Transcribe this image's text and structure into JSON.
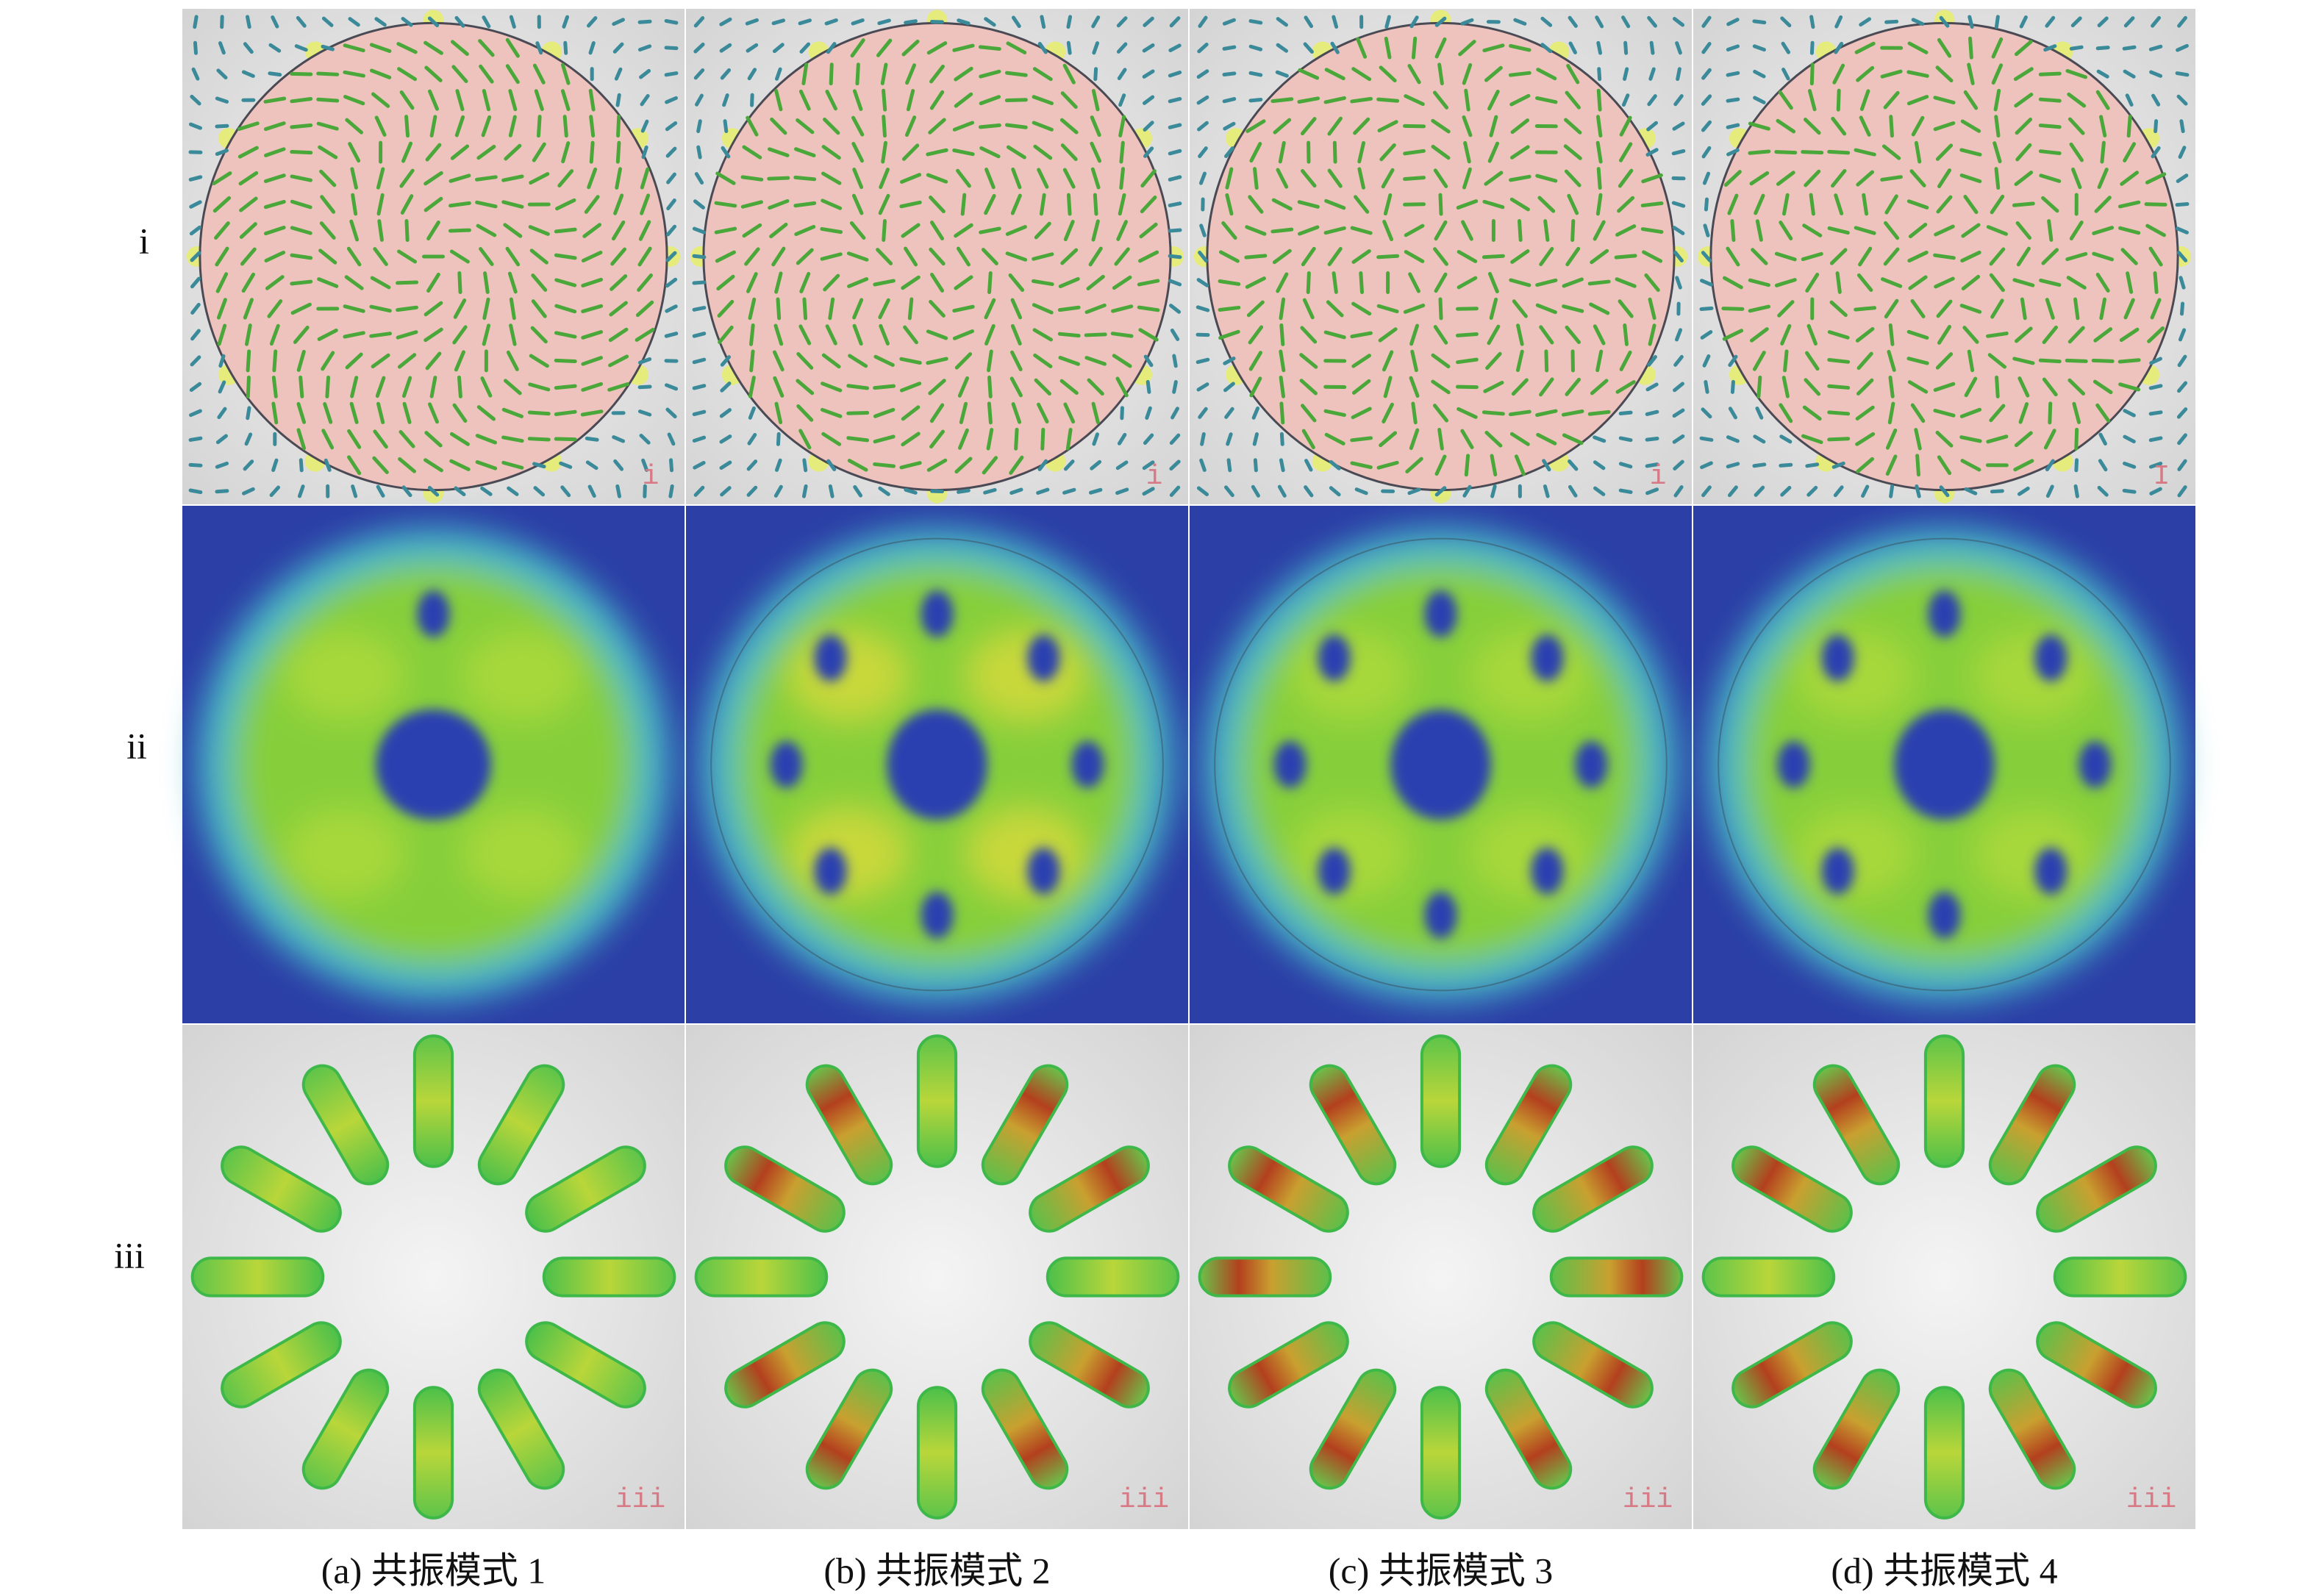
{
  "row_labels": [
    "i",
    "ii",
    "iii"
  ],
  "row_i_labels": [
    "i",
    "i",
    "i",
    "I"
  ],
  "row_iii_labels": [
    "iii",
    "iii",
    "iii",
    "iii"
  ],
  "captions": [
    "(a) 共振模式 1",
    "(b) 共振模式 2",
    "(c) 共振模式 3",
    "(d) 共振模式 4"
  ]
}
